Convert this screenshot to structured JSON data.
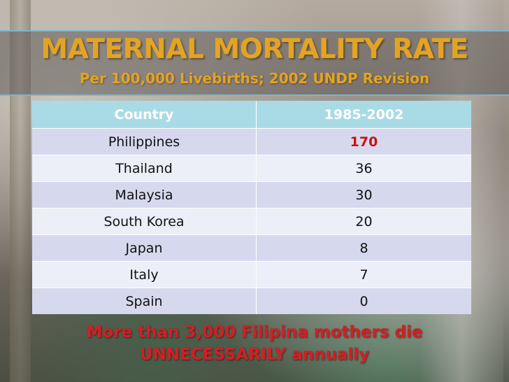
{
  "slide": {
    "title": "MATERNAL MORTALITY RATE",
    "subtitle": "Per 100,000 Livebirths; 2002 UNDP Revision",
    "table": {
      "headers": [
        "Country",
        "1985-2002"
      ],
      "rows": [
        {
          "country": "Philippines",
          "value": "170"
        },
        {
          "country": "Thailand",
          "value": "36"
        },
        {
          "country": "Malaysia",
          "value": "30"
        },
        {
          "country": "South Korea",
          "value": "20"
        },
        {
          "country": "Japan",
          "value": "8"
        },
        {
          "country": "Italy",
          "value": "7"
        },
        {
          "country": "Spain",
          "value": "0"
        }
      ]
    },
    "footer_line1": "More than 3,000 Filipina mothers die",
    "footer_line2": "UNNECESSARILY annually"
  },
  "colors": {
    "title": "#e3a424",
    "header_bg": "#a9dbe7",
    "highlight": "#cc1111",
    "footer": "#d21f24"
  }
}
